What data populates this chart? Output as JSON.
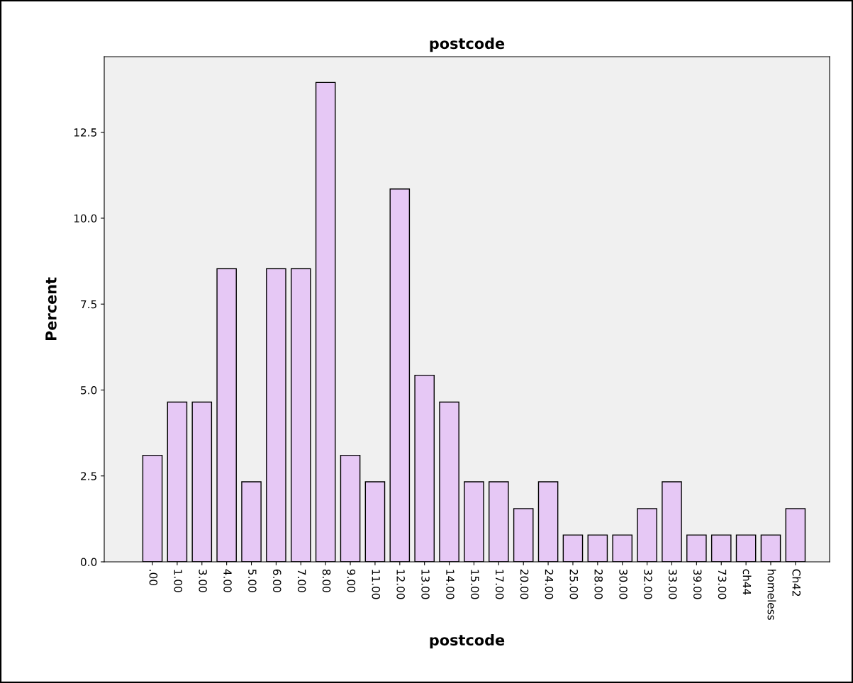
{
  "chart_data": {
    "type": "bar",
    "title": "postcode",
    "xlabel": "postcode",
    "ylabel": "Percent",
    "categories": [
      ".00",
      "1.00",
      "3.00",
      "4.00",
      "5.00",
      "6.00",
      "7.00",
      "8.00",
      "9.00",
      "11.00",
      "12.00",
      "13.00",
      "14.00",
      "15.00",
      "17.00",
      "20.00",
      "24.00",
      "25.00",
      "28.00",
      "30.00",
      "32.00",
      "33.00",
      "39.00",
      "73.00",
      "ch44",
      "homeless",
      "Ch42"
    ],
    "values": [
      3.1,
      4.65,
      4.65,
      8.53,
      2.33,
      8.53,
      8.53,
      13.95,
      3.1,
      2.33,
      10.85,
      5.43,
      4.65,
      2.33,
      2.33,
      1.55,
      2.33,
      0.78,
      0.78,
      0.78,
      1.55,
      2.33,
      0.78,
      0.78,
      0.78,
      0.78,
      1.55
    ],
    "color": "#e6c8f5",
    "ylim": [
      0,
      14.7
    ],
    "yticks": [
      {
        "value": 0,
        "label": "0.0"
      },
      {
        "value": 2.5,
        "label": "2.5"
      },
      {
        "value": 5,
        "label": "5.0"
      },
      {
        "value": 7.5,
        "label": "7.5"
      },
      {
        "value": 10,
        "label": "10.0"
      },
      {
        "value": 12.5,
        "label": "12.5"
      }
    ],
    "grid": false,
    "legend": false
  }
}
